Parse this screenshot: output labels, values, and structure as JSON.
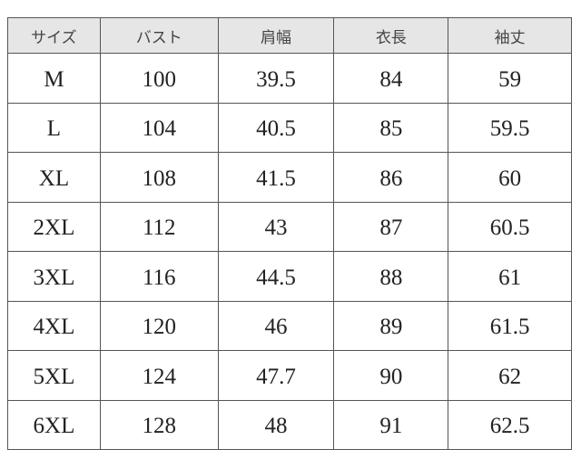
{
  "headers": [
    "サイズ",
    "バスト",
    "肩幅",
    "衣長",
    "袖丈"
  ],
  "rows": [
    [
      "M",
      "100",
      "39.5",
      "84",
      "59"
    ],
    [
      "L",
      "104",
      "40.5",
      "85",
      "59.5"
    ],
    [
      "XL",
      "108",
      "41.5",
      "86",
      "60"
    ],
    [
      "2XL",
      "112",
      "43",
      "87",
      "60.5"
    ],
    [
      "3XL",
      "116",
      "44.5",
      "88",
      "61"
    ],
    [
      "4XL",
      "120",
      "46",
      "89",
      "61.5"
    ],
    [
      "5XL",
      "124",
      "47.7",
      "90",
      "62"
    ],
    [
      "6XL",
      "128",
      "48",
      "91",
      "62.5"
    ]
  ]
}
